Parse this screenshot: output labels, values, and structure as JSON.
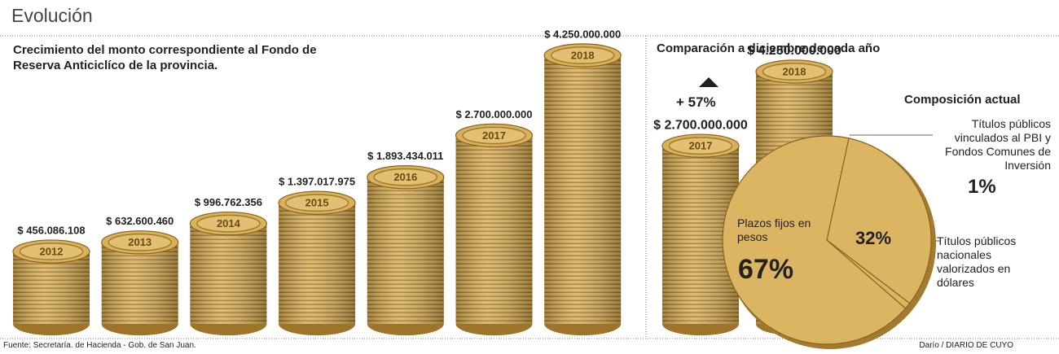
{
  "header": {
    "title": "Evolución"
  },
  "footer": {
    "source": "Fuente: Secretaría. de Hacienda - Gob. de San Juan.",
    "credit": "Darío / DIARIO DE CUYO"
  },
  "chart_data": [
    {
      "type": "bar",
      "title": "Crecimiento del monto correspondiente al Fondo de Reserva Anticiclíco de la provincia.",
      "categories": [
        "2012",
        "2013",
        "2014",
        "2015",
        "2016",
        "2017",
        "2018"
      ],
      "values": [
        456086108,
        632600460,
        996762356,
        1397017975,
        1893434011,
        2700000000,
        4250000000
      ],
      "value_labels": [
        "$ 456.086.108",
        "$ 632.600.460",
        "$ 996.762.356",
        "$ 1.397.017.975",
        "$ 1.893.434.011",
        "$ 2.700.000.000",
        "$ 4.250.000.000"
      ],
      "color": "#d9b15a"
    },
    {
      "type": "bar",
      "title": "Comparación a diciembre de cada año",
      "categories": [
        "2017",
        "2018"
      ],
      "values": [
        2700000000,
        4250000000
      ],
      "value_labels": [
        "$ 2.700.000.000",
        "$ 4.250.000.000"
      ],
      "annotation": "+ 57%",
      "color": "#d9b15a"
    },
    {
      "type": "pie",
      "title": "Composición actual",
      "categories": [
        "Plazos fijos en pesos",
        "Títulos públicos nacionales valorizados en dólares",
        "Títulos públicos vinculados al PBI y Fondos Comunes de Inversión"
      ],
      "values": [
        67,
        32,
        1
      ],
      "value_labels": [
        "67%",
        "32%",
        "1%"
      ],
      "color": "#dcb562"
    }
  ]
}
